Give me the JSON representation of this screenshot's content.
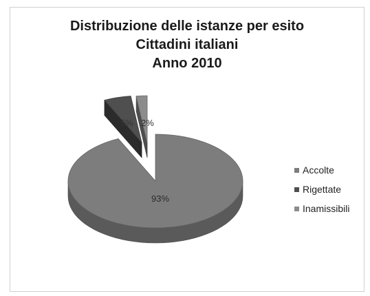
{
  "chart_data": {
    "type": "pie",
    "title_lines": [
      "Distribuzione delle istanze per esito",
      "Cittadini italiani",
      "Anno 2010"
    ],
    "categories": [
      "Accolte",
      "Rigettate",
      "Inamissibili"
    ],
    "values": [
      93,
      5,
      2
    ],
    "data_labels": [
      "93%",
      "5%",
      "2%"
    ],
    "colors": [
      "#7d7d7d",
      "#4f4f4f",
      "#8c8c8c"
    ],
    "style": "3d-exploded",
    "legend_position": "right"
  }
}
